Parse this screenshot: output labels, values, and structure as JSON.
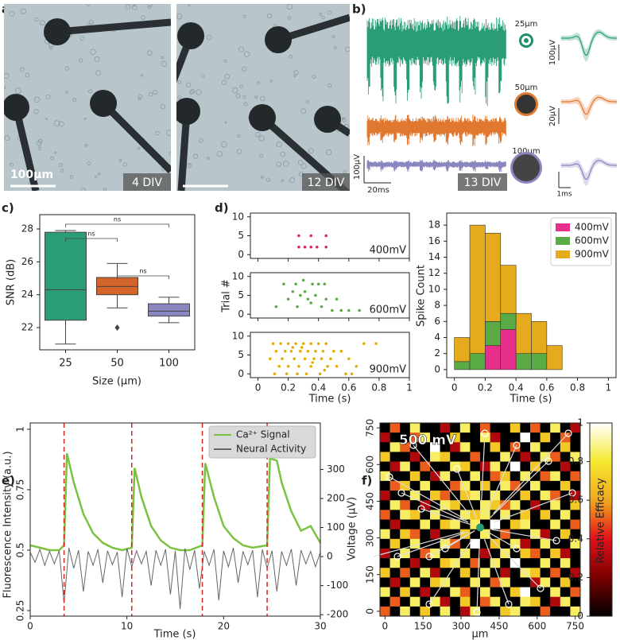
{
  "images": {
    "panel": "a)",
    "scale": "100μm",
    "days": [
      "4 DIV",
      "12 DIV"
    ]
  },
  "recordings": {
    "panel": "b)",
    "electrodes": [
      "25μm",
      "50μm",
      "100μm"
    ],
    "trace_scale": [
      "100μV",
      "20ms"
    ],
    "div": "13 DIV",
    "waveform_scales": [
      "100μV",
      "20μV",
      "1ms"
    ]
  },
  "chart_data": [
    {
      "type": "box",
      "panel": "c)",
      "xlabel": "Size (μm)",
      "ylabel": "SNR (dB)",
      "categories": [
        "25",
        "50",
        "100"
      ],
      "colors": [
        "#2a9d76",
        "#d4652a",
        "#8a86c0"
      ],
      "boxes": [
        {
          "whislo": 21.0,
          "q1": 22.45,
          "med": 24.3,
          "q3": 27.8,
          "whishi": 27.9,
          "fliers": []
        },
        {
          "whislo": 23.2,
          "q1": 24.0,
          "med": 24.5,
          "q3": 25.05,
          "whishi": 25.9,
          "fliers": [
            22.0
          ]
        },
        {
          "whislo": 22.3,
          "q1": 22.7,
          "med": 23.0,
          "q3": 23.45,
          "whishi": 23.85,
          "fliers": []
        }
      ],
      "brackets": [
        {
          "pair": [
            0,
            2
          ],
          "label": "ns"
        },
        {
          "pair": [
            0,
            1
          ],
          "label": "ns"
        },
        {
          "pair": [
            1,
            2
          ],
          "label": "ns"
        }
      ],
      "ylim": [
        20.65,
        28.87
      ],
      "yticks": [
        22,
        24,
        26,
        28
      ]
    },
    {
      "type": "raster",
      "panel": "d)",
      "xlabel": "Time (s)",
      "ylabel": "Trial #",
      "xlim": [
        -0.05,
        1.0
      ],
      "xticks": [
        0,
        0.2,
        0.4,
        0.6,
        0.8,
        1
      ],
      "ylim": [
        -1,
        11
      ],
      "yticks": [
        0,
        5,
        10
      ],
      "series": [
        {
          "name": "400mV",
          "color": "#e0245e",
          "x": [
            0.27,
            0.35,
            0.45,
            0.27,
            0.31,
            0.35,
            0.39,
            0.45
          ],
          "values": [
            5,
            5,
            5,
            2,
            2,
            2,
            2,
            2
          ]
        },
        {
          "name": "600mV",
          "color": "#5aaa45",
          "x": [
            0.17,
            0.25,
            0.3,
            0.36,
            0.4,
            0.44,
            0.28,
            0.38,
            0.2,
            0.33,
            0.45,
            0.12,
            0.26,
            0.42,
            0.49,
            0.55,
            0.6,
            0.67,
            0.35,
            0.23,
            0.31,
            0.52
          ],
          "values": [
            8,
            8,
            9,
            8,
            8,
            8,
            5,
            5,
            4,
            4,
            4,
            2,
            2,
            2,
            1,
            1,
            1,
            1,
            3,
            6,
            6,
            4
          ]
        },
        {
          "name": "900mV",
          "color": "#e6ab02",
          "x": [
            0.1,
            0.15,
            0.2,
            0.25,
            0.3,
            0.35,
            0.4,
            0.45,
            0.12,
            0.18,
            0.22,
            0.28,
            0.33,
            0.38,
            0.43,
            0.5,
            0.55,
            0.08,
            0.16,
            0.24,
            0.31,
            0.37,
            0.42,
            0.48,
            0.6,
            0.14,
            0.2,
            0.27,
            0.35,
            0.46,
            0.52,
            0.65,
            0.7,
            0.78,
            0.11,
            0.19,
            0.26,
            0.32,
            0.41,
            0.58,
            0.62,
            0.23,
            0.29,
            0.36,
            0.44
          ],
          "values": [
            8,
            8,
            8,
            8,
            8,
            8,
            8,
            8,
            6,
            6,
            6,
            6,
            6,
            6,
            6,
            6,
            6,
            4,
            4,
            4,
            4,
            4,
            4,
            4,
            4,
            2,
            2,
            2,
            2,
            2,
            2,
            2,
            8,
            8,
            0,
            0,
            0,
            0,
            0,
            0,
            0,
            7,
            7,
            3,
            1
          ]
        }
      ]
    },
    {
      "type": "histogram",
      "xlabel": "Time (s)",
      "ylabel": "Spike Count",
      "stacked": true,
      "legend": "upper right",
      "bins": [
        0,
        0.1,
        0.2,
        0.3,
        0.4,
        0.5,
        0.6,
        0.7
      ],
      "series": [
        {
          "name": "400mV",
          "color": "#e6308a",
          "values": [
            0,
            0,
            3,
            5,
            0,
            0,
            0
          ]
        },
        {
          "name": "600mV",
          "color": "#5aaa45",
          "values": [
            1,
            2,
            3,
            2,
            2,
            2,
            0
          ]
        },
        {
          "name": "900mV",
          "color": "#e6ab1c",
          "values": [
            3,
            16,
            11,
            6,
            5,
            4,
            3
          ]
        }
      ],
      "xlim": [
        -0.05,
        1.05
      ],
      "xticks": [
        0,
        0.2,
        0.4,
        0.6,
        0.8,
        1
      ],
      "ylim": [
        -1,
        19.5
      ],
      "yticks": [
        0,
        2,
        4,
        6,
        8,
        10,
        12,
        14,
        16,
        18
      ]
    },
    {
      "type": "line",
      "panel": "e)",
      "xlabel": "Time (s)",
      "ylabel": "Fluorescence Intensity (a.u.)",
      "y2label": "Voltage (μV)",
      "legend": "upper right",
      "stim_times": [
        3.5,
        10.5,
        17.8,
        24.5
      ],
      "stim_color": "#d62728",
      "series": [
        {
          "name": "Ca²⁺ Signal",
          "color": "#7cc242",
          "x": [
            0,
            1,
            2,
            3,
            3.5,
            3.8,
            4.5,
            5.5,
            6.5,
            7.5,
            8.5,
            9.5,
            10.5,
            10.8,
            11.5,
            12.5,
            13.5,
            14.5,
            15.5,
            16.5,
            17.8,
            18.1,
            19,
            20,
            21,
            22,
            23,
            24.5,
            24.8,
            25.5,
            26,
            27,
            28,
            29,
            30
          ],
          "values": [
            0.52,
            0.51,
            0.5,
            0.5,
            0.52,
            0.9,
            0.78,
            0.65,
            0.57,
            0.53,
            0.51,
            0.5,
            0.51,
            0.84,
            0.72,
            0.6,
            0.54,
            0.51,
            0.5,
            0.5,
            0.52,
            0.86,
            0.72,
            0.6,
            0.55,
            0.52,
            0.51,
            0.52,
            0.88,
            0.87,
            0.78,
            0.66,
            0.58,
            0.6,
            0.53
          ]
        },
        {
          "name": "Neural Activity",
          "color": "#666666",
          "axis": "y2",
          "x": [
            0,
            0.5,
            1,
            1.5,
            2,
            2.5,
            3,
            3.5,
            4,
            4.5,
            5,
            5.5,
            6,
            6.5,
            7,
            7.5,
            8,
            8.5,
            9,
            9.5,
            10,
            10.5,
            11,
            11.5,
            12,
            12.5,
            13,
            13.5,
            14,
            14.5,
            15,
            15.5,
            16,
            16.5,
            17,
            17.5,
            18,
            18.5,
            19,
            19.5,
            20,
            20.5,
            21,
            21.5,
            22,
            22.5,
            23,
            23.5,
            24,
            24.5,
            25,
            25.5,
            26,
            26.5,
            27,
            27.5,
            28,
            28.5,
            29,
            29.5,
            30
          ],
          "values": [
            15,
            -20,
            25,
            -30,
            18,
            -25,
            20,
            -160,
            30,
            -40,
            22,
            -120,
            18,
            -30,
            25,
            -90,
            20,
            -28,
            15,
            -140,
            28,
            -35,
            20,
            -25,
            18,
            -100,
            22,
            -30,
            25,
            -130,
            20,
            -180,
            28,
            -45,
            22,
            -110,
            18,
            -30,
            25,
            -150,
            20,
            -35,
            30,
            -90,
            18,
            -28,
            22,
            -140,
            25,
            -40,
            20,
            -120,
            18,
            -30,
            26,
            -100,
            22,
            -25,
            18,
            -35,
            15
          ]
        }
      ],
      "xlim": [
        0,
        30
      ],
      "xticks": [
        0,
        10,
        20,
        30
      ],
      "ylim": [
        0.227,
        1.026
      ],
      "yticks": [
        0.25,
        0.5,
        0.75,
        1
      ],
      "y2lim": [
        -205,
        460
      ],
      "y2ticks": [
        -200,
        -100,
        0,
        100,
        200,
        300
      ]
    },
    {
      "type": "heatmap",
      "panel": "f)",
      "title": "500 mV",
      "xlabel": "μm",
      "colorbar_label": "Relative Efficacy",
      "colormap": [
        "#000000",
        "#7a0000",
        "#e3111b",
        "#f0a81c",
        "#f5e830",
        "#ffffff"
      ],
      "xlim": [
        -20,
        770
      ],
      "ylim": [
        -20,
        770
      ],
      "xticks": [
        0,
        150,
        300,
        450,
        600,
        750
      ],
      "yticks": [
        0,
        150,
        300,
        450,
        600,
        750
      ],
      "clim": [
        0,
        1
      ],
      "cticks": [
        0,
        0.2,
        0.4,
        0.6,
        0.8,
        1
      ],
      "values": [
        [
          0,
          0.5,
          0,
          0.85,
          0,
          0,
          0.3,
          0,
          0.85,
          0,
          0.5,
          0,
          0,
          0.7,
          0,
          0.5,
          0,
          0.85,
          0,
          0.3
        ],
        [
          0.3,
          0,
          0,
          0.5,
          0.85,
          0,
          0,
          0.7,
          0,
          0,
          0.85,
          0.3,
          0,
          0,
          1,
          0,
          0.7,
          0,
          0.5,
          0
        ],
        [
          0,
          0.85,
          0.5,
          0,
          0,
          1,
          0,
          0.3,
          0.85,
          0,
          0,
          0.7,
          0,
          0.5,
          0,
          0.85,
          0,
          0,
          0.7,
          0
        ],
        [
          0.7,
          0,
          0,
          0.3,
          0,
          0.85,
          0.7,
          0,
          0,
          0.5,
          0,
          0,
          0.85,
          0,
          0.3,
          0,
          0.85,
          0.5,
          0,
          0.85
        ],
        [
          0,
          0.3,
          0.85,
          0,
          0.5,
          0,
          0,
          0.85,
          0.7,
          0,
          0.3,
          0.85,
          0,
          1,
          0,
          0.7,
          0,
          0,
          0.3,
          0
        ],
        [
          0.85,
          0,
          0,
          0.7,
          0,
          0.3,
          0.85,
          0,
          0,
          0.85,
          0,
          0.5,
          0.7,
          0,
          0.85,
          0,
          0.5,
          0.85,
          0,
          0.5
        ],
        [
          0,
          0.5,
          0.7,
          0,
          0.85,
          0,
          0,
          0.5,
          0.85,
          0,
          0.7,
          0,
          0.85,
          0.5,
          0,
          0.85,
          0,
          0,
          0.7,
          0
        ],
        [
          0.3,
          0,
          0,
          0.85,
          0,
          0.7,
          0.5,
          0,
          0.7,
          0.85,
          0,
          0.85,
          0,
          0,
          0.7,
          0,
          0.85,
          0.5,
          0,
          0.3
        ],
        [
          0,
          0.85,
          0.5,
          0,
          0.3,
          0,
          0.85,
          0.7,
          0,
          0,
          0.85,
          0.7,
          0.5,
          0.85,
          0,
          0.3,
          0,
          0.85,
          0,
          0.7
        ],
        [
          0.5,
          0,
          0.85,
          0.7,
          0,
          0.85,
          0,
          0,
          0.85,
          0.7,
          0.85,
          0,
          0.85,
          0,
          0.7,
          0,
          0.7,
          0,
          0.85,
          0
        ],
        [
          0,
          0.3,
          0,
          0,
          0.85,
          0,
          0.7,
          0.85,
          0,
          0.85,
          0,
          1,
          0,
          0.7,
          0.85,
          0,
          0,
          0.85,
          0,
          0.5
        ],
        [
          0.85,
          0,
          0.7,
          0.5,
          0,
          0.3,
          0,
          0,
          0.7,
          0,
          0.85,
          0,
          0.5,
          0,
          0,
          0.85,
          0.3,
          0,
          0.7,
          0
        ],
        [
          0,
          0.7,
          0,
          0.85,
          0,
          0,
          0.85,
          0.5,
          0,
          1,
          0,
          0.7,
          0,
          0.85,
          0.3,
          0,
          0.85,
          0,
          0,
          0.85
        ],
        [
          0.3,
          0,
          0.85,
          0,
          0.5,
          0.85,
          0,
          0,
          0.85,
          0,
          0.3,
          0,
          0.85,
          0,
          0.7,
          0.5,
          0,
          0.7,
          0.3,
          0
        ],
        [
          0,
          0.85,
          0,
          0.3,
          0,
          0,
          0.7,
          0.85,
          0,
          0.5,
          0,
          0.85,
          0,
          1,
          0,
          0,
          0.85,
          0,
          0.85,
          0
        ],
        [
          0.7,
          0,
          0.5,
          0,
          0.85,
          0.3,
          0,
          0,
          0.7,
          0,
          0.85,
          0,
          0.3,
          0,
          0.85,
          0.7,
          0,
          0.5,
          0,
          0.3
        ],
        [
          0,
          0.3,
          0,
          0.85,
          0,
          0.7,
          0.85,
          0,
          0,
          0.85,
          0,
          0.5,
          0.85,
          0,
          0,
          0.3,
          0.85,
          0,
          0.7,
          0
        ],
        [
          0.85,
          0,
          0.7,
          0,
          0.3,
          0,
          0,
          0.85,
          0.5,
          0,
          0.85,
          0,
          0,
          0.7,
          1,
          0,
          0,
          0.85,
          0,
          0.5
        ],
        [
          0,
          0.5,
          0,
          0.85,
          0,
          0.85,
          0.3,
          0,
          0.7,
          0,
          0.5,
          0.85,
          0,
          0,
          0.85,
          0.7,
          0,
          0.3,
          0.85,
          0
        ],
        [
          0.5,
          0,
          0.85,
          0,
          0.7,
          0,
          0.85,
          0,
          0.3,
          0.85,
          0,
          0,
          0.7,
          0.85,
          0,
          0,
          0.5,
          0,
          0,
          0.85
        ]
      ]
    }
  ]
}
